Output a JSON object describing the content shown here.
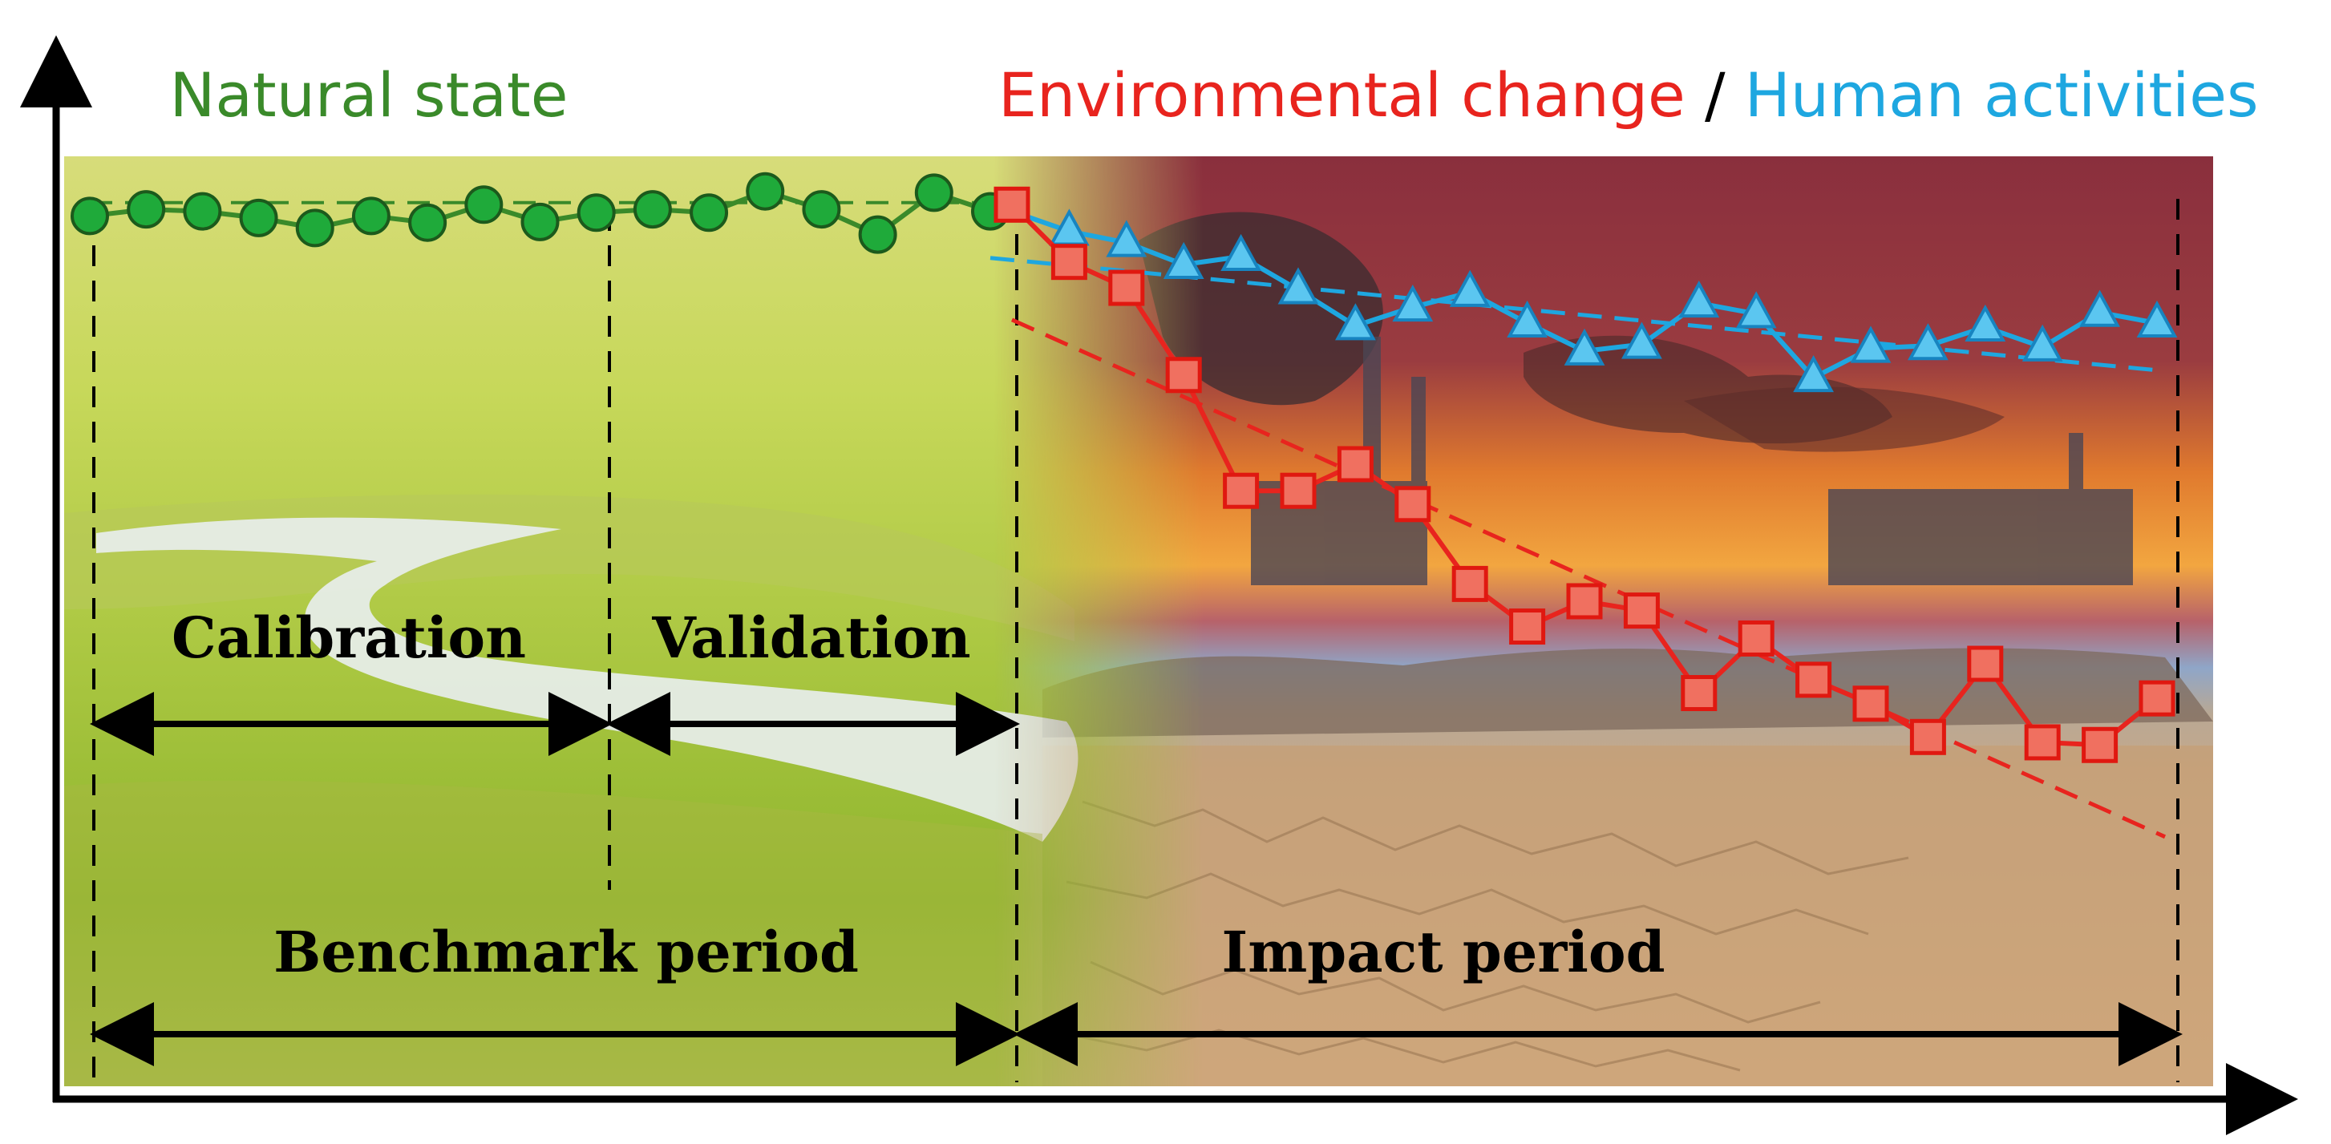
{
  "title_natural": "Natural state",
  "title_env": "Environmental change",
  "title_sep": " / ",
  "title_human": "Human activities",
  "label_calibration": "Calibration",
  "label_validation": "Validation",
  "label_benchmark": "Benchmark period",
  "label_impact": "Impact period",
  "colors": {
    "natural": "#3a8a2a",
    "natural_marker": "#1faa3a",
    "env": "#e8241e",
    "human": "#1ea7e0",
    "axis": "#000000"
  },
  "series": {
    "natural": {
      "values": [
        7.3,
        8.3,
        8.0,
        7.0,
        5.5,
        7.3,
        6.3,
        9.0,
        6.4,
        7.8,
        8.3,
        7.8,
        11.0,
        8.3,
        4.5,
        10.8,
        8.0
      ],
      "trend": [
        9.3,
        9.3
      ]
    },
    "human": {
      "values": [
        8.0,
        5.0,
        3.3,
        0.0,
        1.2,
        -3.8,
        -9.2,
        -6.4,
        -4.2,
        -8.8,
        -13.0,
        -12.0,
        -5.8,
        -7.4,
        -17.0,
        -12.6,
        -12.2,
        -9.4,
        -12.4,
        -7.2,
        -8.8
      ],
      "trend": [
        1.0,
        -16.0
      ]
    },
    "env": {
      "values": [
        9.0,
        0.4,
        -3.5,
        -16.6,
        -34.0,
        -34.0,
        -30.0,
        -36.0,
        -48.0,
        -54.4,
        -50.6,
        -52.0,
        -64.4,
        -56.2,
        -62.4,
        -66.0,
        -71.0,
        -60.0,
        -71.8,
        -72.2,
        -65.2
      ],
      "trend": [
        -8.3,
        -86.0
      ]
    }
  }
}
